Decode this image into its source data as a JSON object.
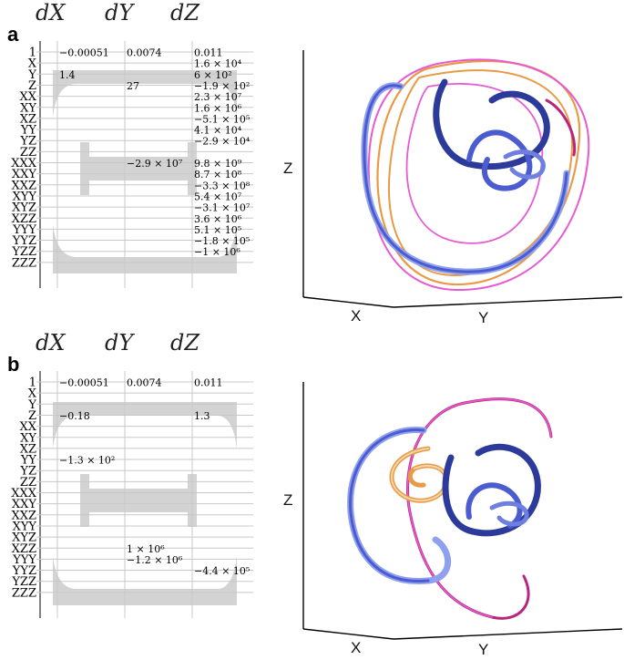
{
  "figure": {
    "columns": [
      "dX",
      "dY",
      "dZ"
    ],
    "rows": [
      "1",
      "X",
      "Y",
      "Z",
      "XX",
      "XY",
      "XZ",
      "YY",
      "YZ",
      "ZZ",
      "XXX",
      "XXY",
      "XXZ",
      "XYY",
      "XYZ",
      "XZZ",
      "YYY",
      "YYZ",
      "YZZ",
      "ZZZ"
    ],
    "axes3d": {
      "x": "X",
      "y": "Y",
      "z": "Z"
    },
    "colors": {
      "band": "#d3d3d3",
      "grid": "#c8c8c8",
      "tube_blue": "#4b5bd0",
      "tube_light": "#8fa0ee",
      "tube_orange": "#e89a45",
      "tube_pink": "#e65ad2",
      "tube_magenta": "#b8257c"
    },
    "icon": "equation-coefficient-table"
  },
  "panels": [
    {
      "label": "a",
      "cells": [
        {
          "row": 0,
          "col": 0,
          "text": "−0.00051"
        },
        {
          "row": 0,
          "col": 1,
          "text": "0.0074"
        },
        {
          "row": 0,
          "col": 2,
          "text": "0.011"
        },
        {
          "row": 1,
          "col": 2,
          "text": "1.6 × 10⁴"
        },
        {
          "row": 2,
          "col": 0,
          "text": "1.4"
        },
        {
          "row": 2,
          "col": 2,
          "text": "6 × 10²"
        },
        {
          "row": 3,
          "col": 1,
          "text": "27"
        },
        {
          "row": 3,
          "col": 2,
          "text": "−1.9 × 10²"
        },
        {
          "row": 4,
          "col": 2,
          "text": "2.3 × 10⁷"
        },
        {
          "row": 5,
          "col": 2,
          "text": "1.6 × 10⁶"
        },
        {
          "row": 6,
          "col": 2,
          "text": "−5.1 × 10⁵"
        },
        {
          "row": 7,
          "col": 2,
          "text": "4.1 × 10⁴"
        },
        {
          "row": 8,
          "col": 2,
          "text": "−2.9 × 10⁴"
        },
        {
          "row": 10,
          "col": 1,
          "text": "−2.9 × 10⁷"
        },
        {
          "row": 10,
          "col": 2,
          "text": "9.8 × 10⁹"
        },
        {
          "row": 11,
          "col": 2,
          "text": "8.7 × 10⁸"
        },
        {
          "row": 12,
          "col": 2,
          "text": "−3.3 × 10⁸"
        },
        {
          "row": 13,
          "col": 2,
          "text": "5.4 × 10⁷"
        },
        {
          "row": 14,
          "col": 2,
          "text": "−3.1 × 10⁷"
        },
        {
          "row": 15,
          "col": 2,
          "text": "3.6 × 10⁶"
        },
        {
          "row": 16,
          "col": 2,
          "text": "5.1 × 10⁵"
        },
        {
          "row": 17,
          "col": 2,
          "text": "−1.8 × 10⁵"
        },
        {
          "row": 18,
          "col": 2,
          "text": "−1 × 10⁶"
        }
      ]
    },
    {
      "label": "b",
      "cells": [
        {
          "row": 0,
          "col": 0,
          "text": "−0.00051"
        },
        {
          "row": 0,
          "col": 1,
          "text": "0.0074"
        },
        {
          "row": 0,
          "col": 2,
          "text": "0.011"
        },
        {
          "row": 3,
          "col": 0,
          "text": "−0.18"
        },
        {
          "row": 3,
          "col": 2,
          "text": "1.3"
        },
        {
          "row": 7,
          "col": 0,
          "text": "−1.3 × 10²"
        },
        {
          "row": 15,
          "col": 1,
          "text": "1 × 10⁶"
        },
        {
          "row": 16,
          "col": 1,
          "text": "−1.2 × 10⁶"
        },
        {
          "row": 17,
          "col": 2,
          "text": "−4.4 × 10⁵"
        }
      ]
    }
  ]
}
